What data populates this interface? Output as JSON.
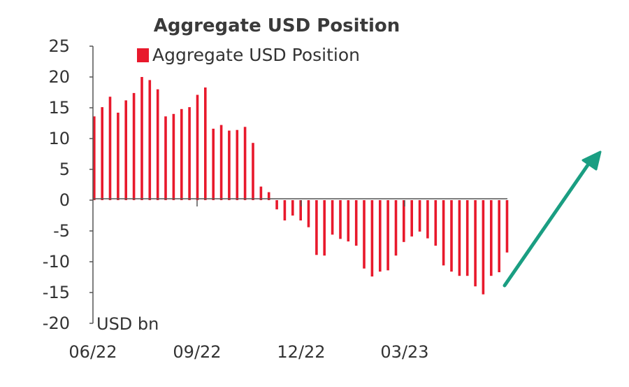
{
  "chart_data": {
    "type": "bar",
    "title": "Aggregate USD Position",
    "ylabel": "USD bn",
    "ylim": [
      -20,
      25
    ],
    "yticks": [
      "25",
      "20",
      "15",
      "10",
      "5",
      "0",
      "-5",
      "-10",
      "-15",
      "-20"
    ],
    "xticks": [
      "06/22",
      "09/22",
      "12/22",
      "03/23"
    ],
    "series": [
      {
        "name": "Aggregate USD Position",
        "color": "#e8192c",
        "values": [
          13.6,
          15.1,
          16.8,
          14.2,
          16.2,
          17.4,
          20.0,
          19.5,
          18.0,
          13.6,
          14.0,
          14.8,
          15.1,
          17.1,
          18.3,
          11.6,
          12.2,
          11.3,
          11.4,
          11.9,
          9.3,
          2.2,
          1.3,
          -1.5,
          -3.3,
          -2.5,
          -3.3,
          -4.4,
          -8.9,
          -9.0,
          -5.6,
          -6.3,
          -6.7,
          -7.4,
          -11.1,
          -12.4,
          -11.6,
          -11.4,
          -9.0,
          -6.8,
          -5.9,
          -5.1,
          -6.2,
          -7.4,
          -10.6,
          -11.6,
          -12.3,
          -12.3,
          -14.0,
          -15.3,
          -12.3,
          -11.7,
          -8.5
        ]
      }
    ],
    "grid": false,
    "legend": "top"
  }
}
